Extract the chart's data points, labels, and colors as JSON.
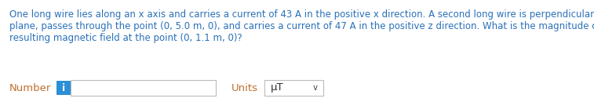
{
  "bg_color": "#ffffff",
  "text_color": "#2970b8",
  "paragraph_line1": "One long wire lies along an x axis and carries a current of 43 A in the positive x direction. A second long wire is perpendicular to the xy",
  "paragraph_line2": "plane, passes through the point (0, 5.0 m, 0), and carries a current of 47 A in the positive z direction. What is the magnitude of the",
  "paragraph_line3": "resulting magnetic field at the point (0, 1.1 m, 0)?",
  "label_number": "Number",
  "label_units": "Units",
  "units_text": "μT",
  "input_box_color": "#ffffff",
  "input_border_color": "#bbbbbb",
  "info_btn_color": "#2b8fd6",
  "info_btn_text": "i",
  "info_btn_text_color": "#ffffff",
  "label_color": "#c07030",
  "dropdown_border_color": "#bbbbbb",
  "font_size_para": 8.5,
  "font_size_label": 9.5,
  "font_size_info": 9.0,
  "font_size_units": 9.5,
  "fig_width": 7.57,
  "fig_height": 1.3,
  "dpi": 100
}
